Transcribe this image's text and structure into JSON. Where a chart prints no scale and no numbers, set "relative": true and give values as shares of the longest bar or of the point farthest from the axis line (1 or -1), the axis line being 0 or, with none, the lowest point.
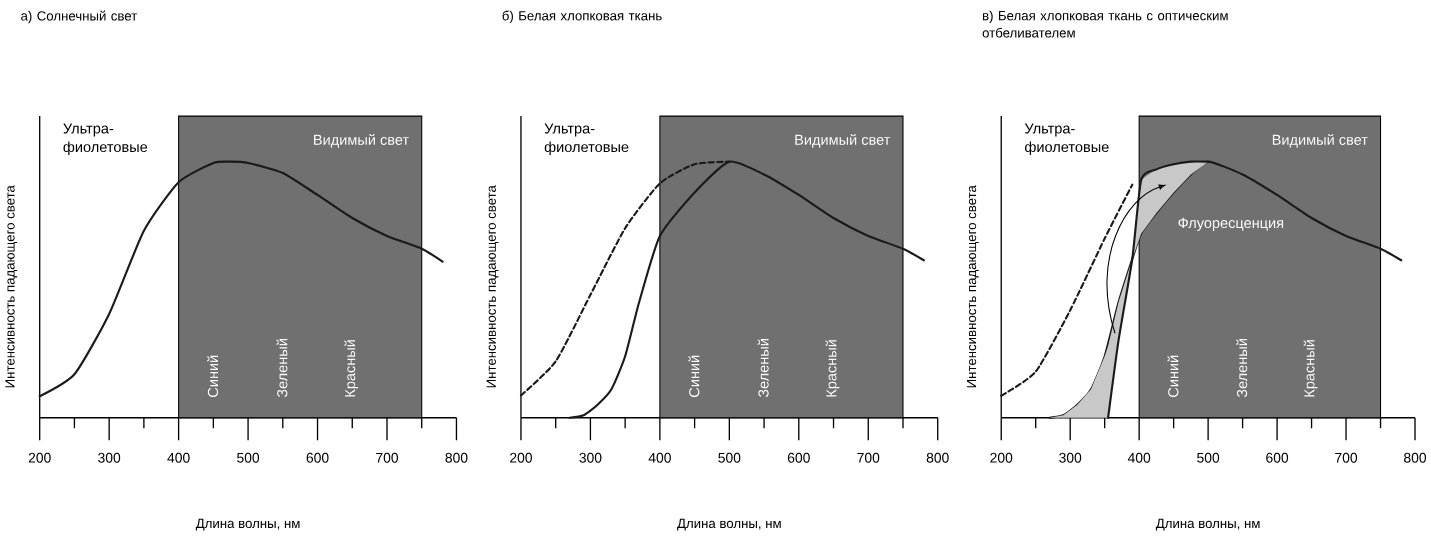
{
  "chart_data": [
    {
      "type": "line",
      "title": "а) Солнечный свет",
      "xlabel": "Длина волны, нм",
      "ylabel": "Интенсивность падающего света",
      "relative": true,
      "xlim": [
        200,
        800
      ],
      "xticks": [
        200,
        {
          "value": 250,
          "label": null
        },
        300,
        {
          "value": 350,
          "label": null
        },
        400,
        {
          "value": 450,
          "label": null
        },
        500,
        {
          "value": 550,
          "label": null
        },
        600,
        {
          "value": 650,
          "label": null
        },
        700,
        {
          "value": 750,
          "label": null
        },
        800
      ],
      "bands": [
        {
          "axis": "x",
          "from": 400,
          "to": 750,
          "label": "Видимый свет",
          "color": "#707070"
        }
      ],
      "annotations": [
        "Ультра-фиолетовые",
        "Синий",
        "Зеленый",
        "Красный"
      ],
      "series": [
        {
          "color": "#1a1a1a",
          "line_style": "solid",
          "x": [
            200,
            250,
            300,
            350,
            400,
            450,
            475,
            500,
            550,
            600,
            650,
            700,
            750,
            780
          ],
          "values": [
            0.084,
            0.17,
            0.405,
            0.73,
            0.92,
            0.995,
            1,
            0.995,
            0.956,
            0.87,
            0.78,
            0.71,
            0.66,
            0.61
          ]
        }
      ]
    },
    {
      "type": "line",
      "title": "б) Белая хлопковая ткань",
      "xlabel": "Длина волны, нм",
      "ylabel": "Интенсивность падающего света",
      "relative": true,
      "xlim": [
        200,
        800
      ],
      "xticks": [
        200,
        {
          "value": 250,
          "label": null
        },
        300,
        {
          "value": 350,
          "label": null
        },
        400,
        {
          "value": 450,
          "label": null
        },
        500,
        {
          "value": 550,
          "label": null
        },
        600,
        {
          "value": 650,
          "label": null
        },
        700,
        {
          "value": 750,
          "label": null
        },
        800
      ],
      "bands": [
        {
          "axis": "x",
          "from": 400,
          "to": 750,
          "label": "Видимый свет",
          "color": "#707070"
        }
      ],
      "annotations": [
        "Ультра-фиолетовые",
        "Синий",
        "Зеленый",
        "Красный"
      ],
      "series": [
        {
          "color": "#1a1a1a",
          "line_style": "dashed",
          "x": [
            200,
            250,
            300,
            350,
            400,
            450,
            500
          ],
          "values": [
            0.087,
            0.22,
            0.48,
            0.74,
            0.915,
            0.99,
            1
          ]
        },
        {
          "color": "#1a1a1a",
          "line_style": "solid",
          "x": [
            270,
            290,
            310,
            330,
            350,
            370,
            400,
            450,
            500,
            550,
            600,
            650,
            700,
            750,
            780
          ],
          "values": [
            0,
            0.01,
            0.05,
            0.11,
            0.24,
            0.45,
            0.71,
            0.88,
            1,
            0.95,
            0.87,
            0.78,
            0.71,
            0.66,
            0.615
          ]
        }
      ]
    },
    {
      "type": "line",
      "title": "в) Белая хлопковая ткань с оптическим отбеливателем",
      "xlabel": "Длина волны, нм",
      "ylabel": "Интенсивность падающего света",
      "relative": true,
      "xlim": [
        200,
        800
      ],
      "xticks": [
        200,
        {
          "value": 250,
          "label": null
        },
        300,
        {
          "value": 350,
          "label": null
        },
        400,
        {
          "value": 450,
          "label": null
        },
        500,
        {
          "value": 550,
          "label": null
        },
        600,
        {
          "value": 650,
          "label": null
        },
        700,
        {
          "value": 750,
          "label": null
        },
        800
      ],
      "bands": [
        {
          "axis": "x",
          "from": 400,
          "to": 750,
          "label": "Видимый свет",
          "color": "#707070"
        }
      ],
      "annotations": [
        "Ультра-фиолетовые",
        "Синий",
        "Зеленый",
        "Красный",
        "Флуоресценция"
      ],
      "series": [
        {
          "color": "#1a1a1a",
          "line_style": "dashed",
          "x": [
            200,
            250,
            300,
            350,
            390
          ],
          "values": [
            0.086,
            0.18,
            0.42,
            0.7,
            0.91
          ]
        },
        {
          "color": "#1a1a1a",
          "line_style": "solid",
          "x": [
            270,
            290,
            310,
            330,
            350,
            370,
            390,
            403,
            425,
            450,
            475,
            500,
            550,
            600,
            650,
            700,
            750,
            780
          ],
          "values": [
            0,
            0.01,
            0.05,
            0.11,
            0.24,
            0.45,
            0.62,
            0.72,
            0.8,
            0.88,
            0.95,
            1,
            0.95,
            0.87,
            0.78,
            0.71,
            0.66,
            0.615
          ]
        },
        {
          "color": "#1a1a1a",
          "line_style": "solid",
          "x": [
            270,
            290,
            310,
            330,
            350,
            355,
            370,
            390,
            403,
            425,
            450,
            475,
            500
          ],
          "values": [
            null,
            null,
            null,
            null,
            null,
            0,
            0.3,
            0.62,
            0.93,
            0.97,
            0.99,
            1,
            1
          ],
          "lower": [
            0,
            0,
            0,
            0,
            0,
            0,
            0.3,
            0.62,
            0.72,
            0.8,
            0.88,
            0.95,
            1
          ],
          "upper": [
            0,
            0.01,
            0.05,
            0.11,
            0.24,
            0.28,
            0.45,
            0.62,
            0.93,
            0.97,
            0.99,
            1,
            1
          ]
        }
      ]
    }
  ]
}
